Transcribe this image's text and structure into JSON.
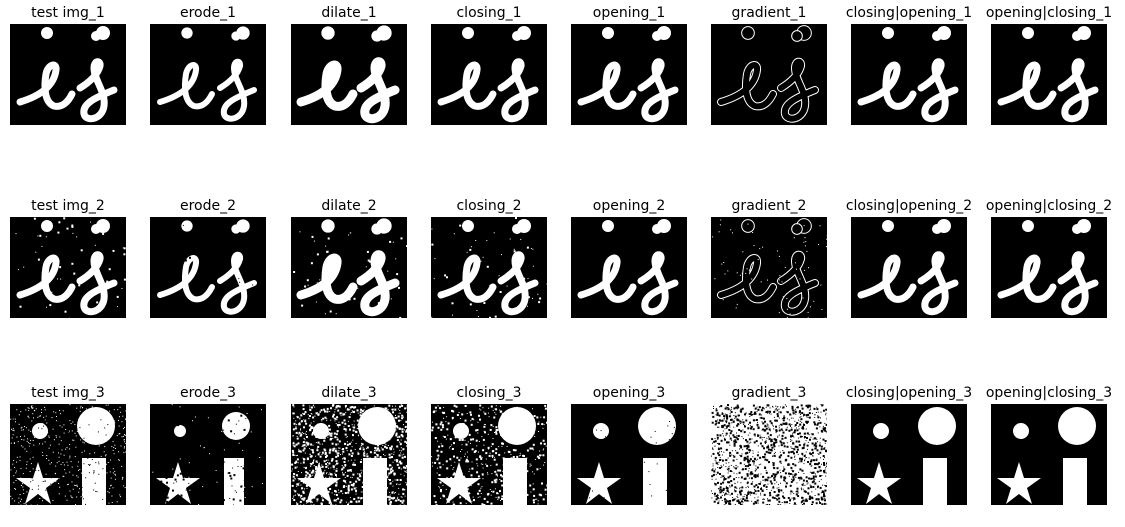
{
  "figure": {
    "rows": [
      {
        "titles": [
          "test img_1",
          "erode_1",
          "dilate_1",
          "closing_1",
          "opening_1",
          "gradient_1",
          "closing|opening_1",
          "opening|closing_1"
        ]
      },
      {
        "titles": [
          "test img_2",
          "erode_2",
          "dilate_2",
          "closing_2",
          "opening_2",
          "gradient_2",
          "closing|opening_2",
          "opening|closing_2"
        ]
      },
      {
        "titles": [
          "test img_3",
          "erode_3",
          "dilate_3",
          "closing_3",
          "opening_3",
          "gradient_3",
          "closing|opening_3",
          "opening|closing_3"
        ]
      }
    ],
    "colors": {
      "background": "#000000",
      "foreground": "#ffffff"
    }
  }
}
